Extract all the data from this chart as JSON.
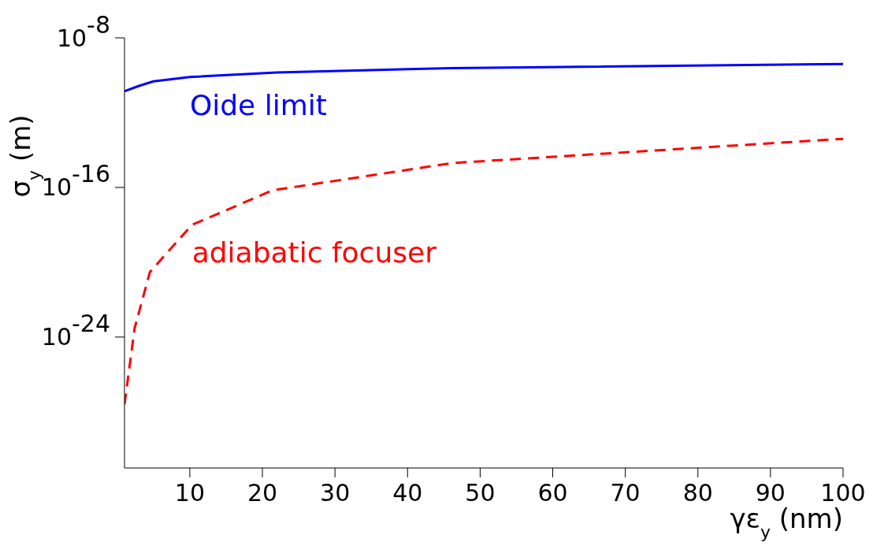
{
  "chart_data": {
    "type": "line",
    "xlabel": "γε$_{y}$ (nm)",
    "ylabel": "σ$_{y}$ (m)",
    "log": "y",
    "xlim": [
      1,
      100
    ],
    "xticks": [
      10,
      20,
      30,
      40,
      50,
      60,
      70,
      80,
      90,
      100
    ],
    "ylim": [
      1e-31,
      1e-08
    ],
    "yticks": [
      {
        "value": 1e-08,
        "label": "10$^{-8}$"
      },
      {
        "value": 1e-16,
        "label": "10$^{-16}$"
      },
      {
        "value": 1e-24,
        "label": "10$^{-24}$"
      }
    ],
    "marker": "none",
    "series": [
      {
        "name": "Oide limit",
        "color": "#0000ff",
        "line_style": "solid",
        "x": [
          1,
          3,
          5,
          10,
          22,
          46,
          100
        ],
        "values": [
          1.4e-11,
          2.7e-11,
          4.7e-11,
          8e-11,
          1.4e-10,
          2.4e-10,
          4e-10
        ]
      },
      {
        "name": "adiabatic focuser",
        "color": "#ff0000",
        "line_style": "dashed",
        "x": [
          1,
          2.4,
          4.5,
          10.3,
          21.4,
          46.1,
          100
        ],
        "values": [
          2.5e-28,
          3e-24,
          3e-21,
          1e-18,
          7e-17,
          2e-15,
          4e-14
        ]
      }
    ]
  }
}
